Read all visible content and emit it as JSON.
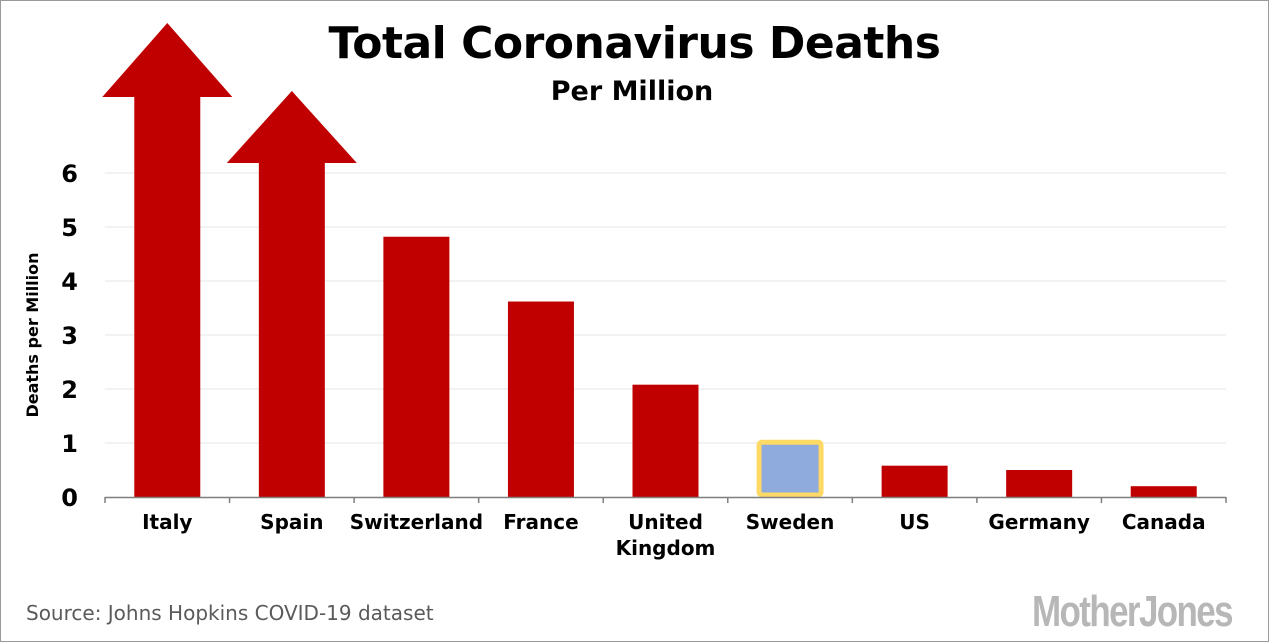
{
  "header": {
    "title": "Total Coronavirus Deaths",
    "subtitle": "Per Million"
  },
  "footer": {
    "source": "Source: Johns Hopkins COVID-19 dataset",
    "logo_text": "MotherJones"
  },
  "colors": {
    "bar": "#c00000",
    "highlight_fill": "#8faadc",
    "highlight_border": "#ffd966",
    "grid": "#e6e6e6",
    "axis": "#7f7f7f",
    "logo": "#b7b7b7"
  },
  "chart_data": {
    "type": "bar",
    "title": "Total Coronavirus Deaths",
    "subtitle": "Per Million",
    "ylabel": "Deaths per Million",
    "xlabel": "",
    "ylim": [
      0,
      6
    ],
    "yticks": [
      0,
      1,
      2,
      3,
      4,
      5,
      6
    ],
    "grid": true,
    "categories": [
      "Italy",
      "Spain",
      "Switzerland",
      "France",
      "United Kingdom",
      "Sweden",
      "US",
      "Germany",
      "Canada"
    ],
    "category_lines": [
      [
        "Italy"
      ],
      [
        "Spain"
      ],
      [
        "Switzerland"
      ],
      [
        "France"
      ],
      [
        "United",
        "Kingdom"
      ],
      [
        "Sweden"
      ],
      [
        "US"
      ],
      [
        "Germany"
      ],
      [
        "Canada"
      ]
    ],
    "values": [
      null,
      null,
      4.82,
      3.62,
      2.08,
      1.05,
      0.58,
      0.5,
      0.2
    ],
    "off_scale": [
      true,
      true,
      false,
      false,
      false,
      false,
      false,
      false,
      false
    ],
    "highlight": "Sweden"
  }
}
